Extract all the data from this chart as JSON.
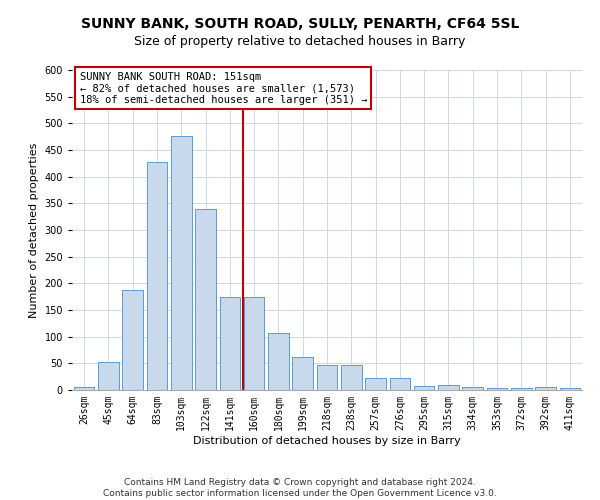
{
  "title1": "SUNNY BANK, SOUTH ROAD, SULLY, PENARTH, CF64 5SL",
  "title2": "Size of property relative to detached houses in Barry",
  "xlabel": "Distribution of detached houses by size in Barry",
  "ylabel": "Number of detached properties",
  "categories": [
    "26sqm",
    "45sqm",
    "64sqm",
    "83sqm",
    "103sqm",
    "122sqm",
    "141sqm",
    "160sqm",
    "180sqm",
    "199sqm",
    "218sqm",
    "238sqm",
    "257sqm",
    "276sqm",
    "295sqm",
    "315sqm",
    "334sqm",
    "353sqm",
    "372sqm",
    "392sqm",
    "411sqm"
  ],
  "values": [
    5,
    52,
    188,
    428,
    477,
    340,
    174,
    174,
    107,
    62,
    47,
    46,
    22,
    22,
    8,
    10,
    5,
    4,
    4,
    5,
    3
  ],
  "bar_color": "#c9d9ec",
  "bar_edge_color": "#5b9bd5",
  "vline_color": "#c00000",
  "annotation_title": "SUNNY BANK SOUTH ROAD: 151sqm",
  "annotation_line1": "← 82% of detached houses are smaller (1,573)",
  "annotation_line2": "18% of semi-detached houses are larger (351) →",
  "annotation_box_color": "#c00000",
  "ylim": [
    0,
    600
  ],
  "yticks": [
    0,
    50,
    100,
    150,
    200,
    250,
    300,
    350,
    400,
    450,
    500,
    550,
    600
  ],
  "footer1": "Contains HM Land Registry data © Crown copyright and database right 2024.",
  "footer2": "Contains public sector information licensed under the Open Government Licence v3.0.",
  "bg_color": "#ffffff",
  "grid_color": "#d0d8e8",
  "title1_fontsize": 10,
  "title2_fontsize": 9,
  "axis_fontsize": 8,
  "tick_fontsize": 7,
  "annotation_fontsize": 7.5,
  "footer_fontsize": 6.5
}
